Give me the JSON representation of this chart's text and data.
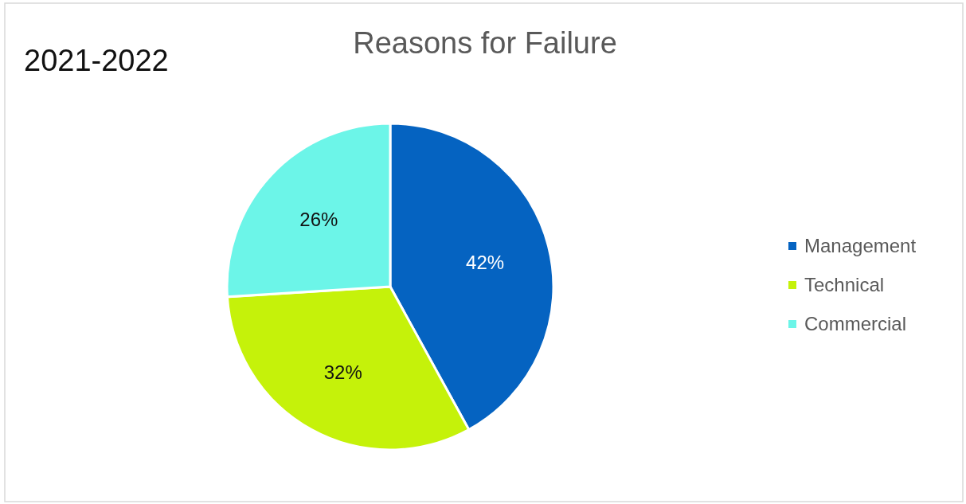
{
  "chart_data": {
    "type": "pie",
    "title": "Reasons for Failure",
    "subtitle": "2021-2022",
    "categories": [
      "Management",
      "Technical",
      "Commercial"
    ],
    "values": [
      42,
      32,
      26
    ],
    "value_labels": [
      "42%",
      "32%",
      "26%"
    ],
    "colors": [
      "#0563c1",
      "#c5f20a",
      "#6cf5e8"
    ],
    "legend": "right"
  }
}
